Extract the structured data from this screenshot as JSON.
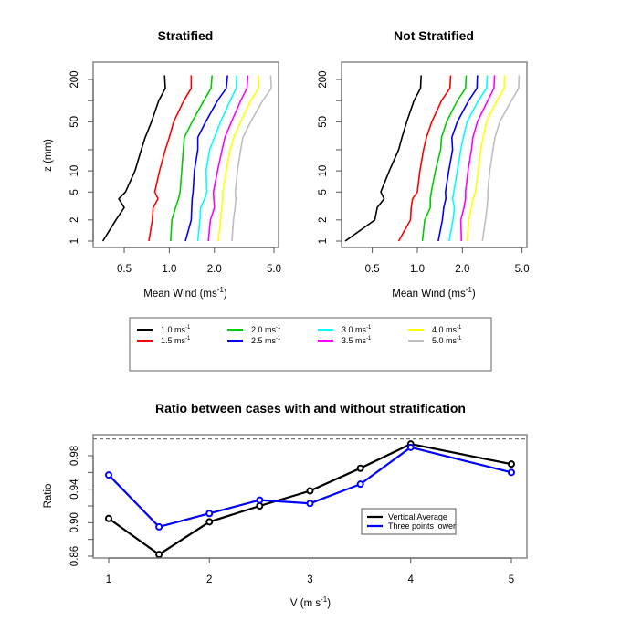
{
  "chart_data": [
    {
      "type": "line",
      "title": "Stratified",
      "xlabel": "Mean Wind (ms",
      "xlabel_sup": "-1",
      "xlabel_close": ")",
      "ylabel": "z (mm)",
      "xscale": "log",
      "yscale": "log",
      "xlim": [
        0.3,
        5.2
      ],
      "ylim": [
        0.85,
        260
      ],
      "xticks": [
        0.5,
        1.0,
        2.0,
        5.0
      ],
      "xtick_labels": [
        "0.5",
        "1.0",
        "2.0",
        "5.0"
      ],
      "yticks": [
        1,
        2,
        5,
        10,
        20,
        50,
        100,
        200
      ],
      "ytick_labels": [
        "1",
        "2",
        "5",
        "10",
        "",
        "50",
        "",
        "200"
      ],
      "z": [
        1,
        2,
        3,
        4,
        5,
        10,
        20,
        30,
        50,
        100,
        150,
        230
      ],
      "series": [
        {
          "name": "1.0 ms-1",
          "color": "#000000",
          "values": [
            0.36,
            0.44,
            0.5,
            0.46,
            0.51,
            0.59,
            0.65,
            0.69,
            0.76,
            0.85,
            0.94,
            0.93
          ]
        },
        {
          "name": "1.5 ms-1",
          "color": "#ff0000",
          "values": [
            0.73,
            0.77,
            0.78,
            0.84,
            0.8,
            0.86,
            0.94,
            1.0,
            1.07,
            1.25,
            1.4,
            1.4
          ]
        },
        {
          "name": "2.0 ms-1",
          "color": "#00cd00",
          "values": [
            1.02,
            1.04,
            1.1,
            1.15,
            1.18,
            1.21,
            1.24,
            1.26,
            1.42,
            1.7,
            1.9,
            1.93
          ]
        },
        {
          "name": "2.5 ms-1",
          "color": "#0000ff",
          "values": [
            1.28,
            1.4,
            1.41,
            1.42,
            1.44,
            1.47,
            1.55,
            1.55,
            1.75,
            2.1,
            2.4,
            2.45
          ]
        },
        {
          "name": "3.0 ms-1",
          "color": "#00ffff",
          "values": [
            1.55,
            1.6,
            1.62,
            1.72,
            1.78,
            1.76,
            1.86,
            2.0,
            2.2,
            2.55,
            2.8,
            2.82
          ]
        },
        {
          "name": "3.5 ms-1",
          "color": "#ff00ff",
          "values": [
            1.82,
            1.88,
            2.0,
            1.98,
            1.97,
            2.1,
            2.25,
            2.35,
            2.6,
            3.0,
            3.3,
            3.35
          ]
        },
        {
          "name": "4.0 ms-1",
          "color": "#ffff00",
          "values": [
            2.12,
            2.2,
            2.24,
            2.28,
            2.27,
            2.4,
            2.55,
            2.7,
            3.0,
            3.5,
            3.95,
            3.95
          ]
        },
        {
          "name": "5.0 ms-1",
          "color": "#bebebe",
          "values": [
            2.62,
            2.68,
            2.75,
            2.78,
            2.76,
            2.85,
            3.0,
            3.1,
            3.5,
            4.2,
            4.8,
            4.75
          ]
        }
      ]
    },
    {
      "type": "line",
      "title": "Not Stratified",
      "xlabel": "Mean Wind (ms",
      "xlabel_sup": "-1",
      "xlabel_close": ")",
      "ylabel": "",
      "xscale": "log",
      "yscale": "log",
      "xlim": [
        0.3,
        5.2
      ],
      "ylim": [
        0.85,
        260
      ],
      "xticks": [
        0.5,
        1.0,
        2.0,
        5.0
      ],
      "xtick_labels": [
        "0.5",
        "1.0",
        "2.0",
        "5.0"
      ],
      "yticks": [
        1,
        2,
        5,
        10,
        20,
        50,
        100,
        200
      ],
      "ytick_labels": [
        "1",
        "2",
        "5",
        "10",
        "",
        "50",
        "",
        "200"
      ],
      "z": [
        1,
        2,
        3,
        4,
        5,
        10,
        20,
        30,
        50,
        100,
        150,
        230
      ],
      "series": [
        {
          "name": "1.0 ms-1",
          "color": "#000000",
          "values": [
            0.33,
            0.52,
            0.54,
            0.6,
            0.57,
            0.65,
            0.75,
            0.79,
            0.85,
            0.95,
            1.05,
            1.06
          ]
        },
        {
          "name": "1.5 ms-1",
          "color": "#ff0000",
          "values": [
            0.75,
            0.9,
            0.91,
            0.93,
            1.0,
            1.04,
            1.1,
            1.15,
            1.25,
            1.45,
            1.65,
            1.67
          ]
        },
        {
          "name": "2.0 ms-1",
          "color": "#00cd00",
          "values": [
            1.08,
            1.12,
            1.22,
            1.22,
            1.24,
            1.32,
            1.43,
            1.45,
            1.57,
            1.85,
            2.1,
            2.12
          ]
        },
        {
          "name": "2.5 ms-1",
          "color": "#0000ff",
          "values": [
            1.38,
            1.47,
            1.5,
            1.55,
            1.54,
            1.62,
            1.72,
            1.7,
            1.85,
            2.2,
            2.5,
            2.52
          ]
        },
        {
          "name": "3.0 ms-1",
          "color": "#00ffff",
          "values": [
            1.63,
            1.73,
            1.77,
            1.72,
            1.75,
            1.85,
            1.95,
            2.03,
            2.15,
            2.55,
            2.9,
            2.93
          ]
        },
        {
          "name": "3.5 ms-1",
          "color": "#ff00ff",
          "values": [
            1.97,
            1.95,
            2.05,
            2.1,
            2.1,
            2.18,
            2.3,
            2.35,
            2.52,
            2.95,
            3.25,
            3.28
          ]
        },
        {
          "name": "4.0 ms-1",
          "color": "#ffff00",
          "values": [
            2.15,
            2.2,
            2.3,
            2.35,
            2.45,
            2.55,
            2.65,
            2.75,
            2.9,
            3.4,
            3.8,
            3.82
          ]
        },
        {
          "name": "5.0 ms-1",
          "color": "#bebebe",
          "values": [
            2.72,
            2.85,
            2.92,
            2.95,
            2.95,
            3.05,
            3.2,
            3.3,
            3.55,
            4.25,
            4.75,
            4.78
          ]
        }
      ]
    },
    {
      "type": "line",
      "title": "Ratio between cases with and without stratification",
      "xlabel": "V (m s",
      "xlabel_sup": "-1",
      "xlabel_close": ")",
      "ylabel": "Ratio",
      "xlim": [
        0.85,
        5.15
      ],
      "ylim": [
        0.858,
        1.005
      ],
      "xticks": [
        1,
        2,
        3,
        4,
        5
      ],
      "xtick_labels": [
        "1",
        "2",
        "3",
        "4",
        "5"
      ],
      "yticks": [
        0.86,
        0.88,
        0.9,
        0.92,
        0.94,
        0.96,
        0.98
      ],
      "ytick_labels": [
        "0.86",
        "",
        "0.90",
        "",
        "0.94",
        "",
        "0.98"
      ],
      "reference_line": 1.0,
      "x": [
        1,
        1.5,
        2,
        2.5,
        3,
        3.5,
        4,
        5
      ],
      "series": [
        {
          "name": "Vertical Average",
          "color": "#000000",
          "values": [
            0.905,
            0.862,
            0.901,
            0.92,
            0.938,
            0.965,
            0.994,
            0.97
          ]
        },
        {
          "name": "Three points lower",
          "color": "#0000ff",
          "values": [
            0.957,
            0.895,
            0.911,
            0.927,
            0.923,
            0.946,
            0.99,
            0.96
          ]
        }
      ],
      "legend_position": "center-right"
    }
  ],
  "legend_top": {
    "unit": "ms",
    "unit_sup": "-1",
    "items": [
      {
        "label": "1.0",
        "color": "#000000"
      },
      {
        "label": "1.5",
        "color": "#ff0000"
      },
      {
        "label": "2.0",
        "color": "#00cd00"
      },
      {
        "label": "2.5",
        "color": "#0000ff"
      },
      {
        "label": "3.0",
        "color": "#00ffff"
      },
      {
        "label": "3.5",
        "color": "#ff00ff"
      },
      {
        "label": "4.0",
        "color": "#ffff00"
      },
      {
        "label": "5.0",
        "color": "#bebebe"
      }
    ]
  }
}
